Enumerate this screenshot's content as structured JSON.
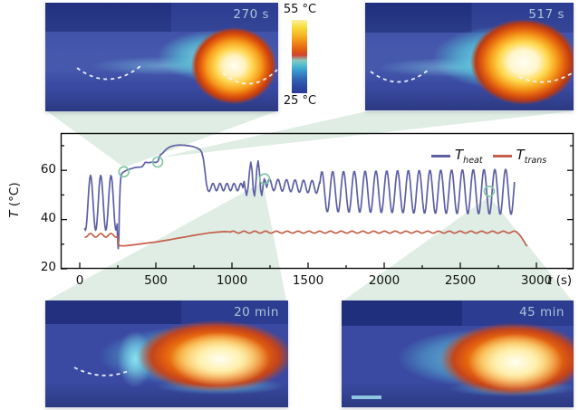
{
  "figure": {
    "thermal_images": [
      {
        "label": "270 s"
      },
      {
        "label": "517 s"
      },
      {
        "label": "20 min"
      },
      {
        "label": "45 min"
      }
    ],
    "colorbar": {
      "max_label": "55 °C",
      "min_label": "25 °C",
      "colors_top_to_bottom": [
        "#fdf0a0",
        "#f8dc3c",
        "#ef8216",
        "#e25810",
        "#cf4430",
        "#52bcd0",
        "#3268b4",
        "#2a3c96"
      ]
    },
    "colors": {
      "heat_line": "#5e5fa3",
      "trans_line": "#c4604b",
      "marker_circle": "#7cc7a3",
      "callout_wedge": "#d6e8dd",
      "ir_label": "#a9c4d8"
    }
  },
  "chart": {
    "ylabel_sym": "T",
    "ylabel_units": "(°C)",
    "xlabel_sym": "t",
    "xlabel_units": "(s)",
    "y_ticks": [
      "60",
      "40",
      "20"
    ],
    "x_ticks": [
      "0",
      "500",
      "1000",
      "1500",
      "2000",
      "2500",
      "3000"
    ],
    "legend": {
      "heat_sym": "T",
      "heat_sub": "heat",
      "trans_sym": "T",
      "trans_sub": "trans"
    }
  },
  "chart_data": {
    "type": "line",
    "title": "",
    "xlabel": "t (s)",
    "ylabel": "T (°C)",
    "xlim": [
      -125,
      3244
    ],
    "ylim": [
      20,
      75.15
    ],
    "x_major_ticks": [
      0,
      500,
      1000,
      1500,
      2000,
      2500,
      3000
    ],
    "x_minor_ticks": [
      250,
      750,
      1250,
      1750,
      2250,
      2750
    ],
    "y_major_ticks": [
      20,
      40,
      60
    ],
    "y_minor_ticks": [
      30,
      50,
      70
    ],
    "grid": false,
    "legend_position": "top-right",
    "series": [
      {
        "name": "T_heat",
        "color": "#5e5fa3",
        "segments": [
          {
            "kind": "osc",
            "t0": 33,
            "t1": 246,
            "period": 67,
            "phase": -2.0,
            "mean0": 46.8,
            "amp0": 11.2
          },
          {
            "kind": "line",
            "pts": [
              [
                246,
                36
              ],
              [
                250,
                30.5
              ],
              [
                253,
                28.2
              ],
              [
                257,
                33
              ],
              [
                261,
                45
              ],
              [
                266,
                54
              ],
              [
                271,
                57.5
              ],
              [
                277,
                58.8
              ]
            ]
          },
          {
            "kind": "line",
            "pts": [
              [
                285,
                59.2
              ],
              [
                295,
                59.6
              ],
              [
                310,
                60.1
              ],
              [
                325,
                60.4
              ],
              [
                340,
                60.7
              ],
              [
                355,
                61.0
              ],
              [
                372,
                61.2
              ],
              [
                388,
                61.3
              ],
              [
                400,
                61.3
              ],
              [
                412,
                61.6
              ],
              [
                420,
                62.3
              ],
              [
                428,
                63.1
              ],
              [
                436,
                63.3
              ],
              [
                448,
                63.1
              ],
              [
                460,
                63.2
              ],
              [
                472,
                63.3
              ],
              [
                484,
                63.3
              ],
              [
                496,
                63.2
              ],
              [
                508,
                63.4
              ],
              [
                515,
                63.8
              ],
              [
                522,
                65.2
              ],
              [
                530,
                66.3
              ],
              [
                545,
                67.0
              ],
              [
                562,
                68.2
              ],
              [
                580,
                69.1
              ],
              [
                600,
                69.7
              ],
              [
                625,
                70.1
              ],
              [
                655,
                70.3
              ],
              [
                685,
                70.2
              ],
              [
                715,
                70.0
              ],
              [
                745,
                69.6
              ],
              [
                770,
                69.1
              ],
              [
                790,
                68.4
              ]
            ]
          },
          {
            "kind": "line",
            "pts": [
              [
                802,
                67.3
              ],
              [
                812,
                64.8
              ],
              [
                822,
                60
              ],
              [
                832,
                54.5
              ],
              [
                842,
                51.8
              ],
              [
                852,
                51.4
              ]
            ]
          },
          {
            "kind": "osc",
            "t0": 852,
            "t1": 1072,
            "period": 46,
            "phase": -1.6,
            "mean0": 53.2,
            "amp0": 1.5
          },
          {
            "kind": "line",
            "pts": [
              [
                1080,
                55.5
              ],
              [
                1088,
                52
              ],
              [
                1096,
                49.8
              ],
              [
                1106,
                53
              ],
              [
                1116,
                60
              ],
              [
                1124,
                63.3
              ],
              [
                1132,
                60
              ],
              [
                1140,
                52
              ],
              [
                1148,
                49.6
              ],
              [
                1156,
                54
              ],
              [
                1164,
                61
              ],
              [
                1172,
                63.8
              ],
              [
                1180,
                60
              ],
              [
                1188,
                52
              ],
              [
                1196,
                49.8
              ],
              [
                1204,
                53.5
              ],
              [
                1212,
                56.6
              ],
              [
                1220,
                55.5
              ],
              [
                1228,
                53.1
              ]
            ]
          },
          {
            "kind": "osc",
            "t0": 1228,
            "t1": 1578,
            "period": 56,
            "phase": -0.5,
            "mean0": 54.2,
            "mean1": 53.2,
            "amp0": 2.3,
            "amp1": 2.6
          },
          {
            "kind": "osc",
            "t0": 1578,
            "t1": 2856,
            "period": 71,
            "phase": 0.44,
            "mean0": 51.3,
            "amp0": 8.2,
            "amp1": 9.3
          }
        ]
      },
      {
        "name": "T_trans",
        "color": "#c4604b",
        "segments": [
          {
            "kind": "osc",
            "t0": 33,
            "t1": 248,
            "period": 67,
            "phase": -2.0,
            "mean0": 33.6,
            "amp0": 0.75
          },
          {
            "kind": "line",
            "pts": [
              [
                252,
                31
              ],
              [
                256,
                29.7
              ],
              [
                262,
                29.4
              ],
              [
                280,
                29.3
              ],
              [
                310,
                29.4
              ],
              [
                350,
                29.7
              ],
              [
                400,
                30.1
              ],
              [
                450,
                30.5
              ],
              [
                500,
                30.9
              ],
              [
                550,
                31.4
              ],
              [
                600,
                31.9
              ],
              [
                650,
                32.5
              ],
              [
                700,
                33.0
              ],
              [
                750,
                33.6
              ],
              [
                800,
                34.1
              ],
              [
                850,
                34.6
              ],
              [
                900,
                34.9
              ],
              [
                950,
                35.1
              ],
              [
                990,
                35.0
              ]
            ]
          },
          {
            "kind": "osc",
            "t0": 990,
            "t1": 2872,
            "period": 71,
            "phase": 0,
            "mean0": 34.9,
            "amp0": 0.4
          },
          {
            "kind": "line",
            "pts": [
              [
                2890,
                33.8
              ],
              [
                2905,
                32.5
              ],
              [
                2920,
                31.0
              ],
              [
                2932,
                29.6
              ],
              [
                2940,
                29.2
              ]
            ]
          }
        ]
      }
    ],
    "markers": {
      "color": "#7cc7a3",
      "points": [
        {
          "t": 290,
          "T": 59.4
        },
        {
          "t": 512,
          "T": 63.4
        },
        {
          "t": 1214,
          "T": 56.5
        },
        {
          "t": 2690,
          "T": 51.5
        }
      ]
    }
  }
}
